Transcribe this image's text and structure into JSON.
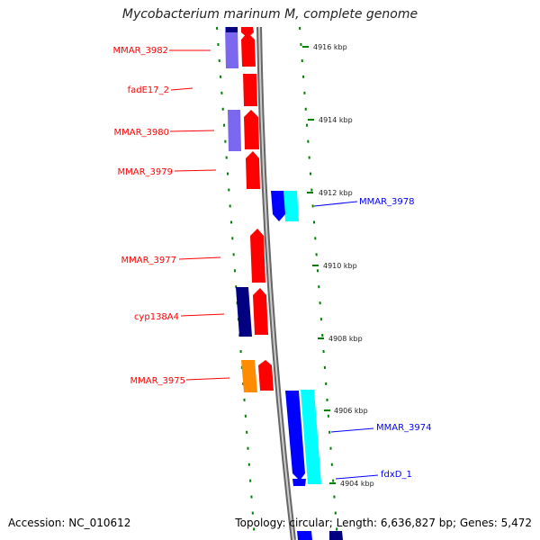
{
  "title": "Mycobacterium marinum M, complete genome",
  "footer": {
    "accession": "Accession: NC_010612",
    "summary": "Topology: circular; Length: 6,636,827 bp; Genes: 5,472"
  },
  "ticks": [
    "4916 kbp",
    "4914 kbp",
    "4912 kbp",
    "4910 kbp",
    "4908 kbp",
    "4906 kbp",
    "4904 kbp"
  ],
  "genes": [
    {
      "name": "MMAR_3982",
      "color": "#ff0000"
    },
    {
      "name": "fadE17_2",
      "color": "#ff0000"
    },
    {
      "name": "MMAR_3980",
      "color": "#ff0000"
    },
    {
      "name": "MMAR_3979",
      "color": "#ff0000"
    },
    {
      "name": "MMAR_3978",
      "color": "#0000ff"
    },
    {
      "name": "MMAR_3977",
      "color": "#ff0000"
    },
    {
      "name": "cyp138A4",
      "color": "#ff0000"
    },
    {
      "name": "MMAR_3975",
      "color": "#ff0000"
    },
    {
      "name": "MMAR_3974",
      "color": "#0000ff"
    },
    {
      "name": "fdxD_1",
      "color": "#0000ff"
    }
  ],
  "colors": {
    "forward_cds": "#ff0000",
    "reverse_cds": "#0000ff",
    "cog_a": "#7b68ee",
    "cog_b": "#000080",
    "cog_c": "#ff8c00",
    "cog_d": "#00ffff",
    "backbone": "#999999",
    "tick": "#008000"
  }
}
